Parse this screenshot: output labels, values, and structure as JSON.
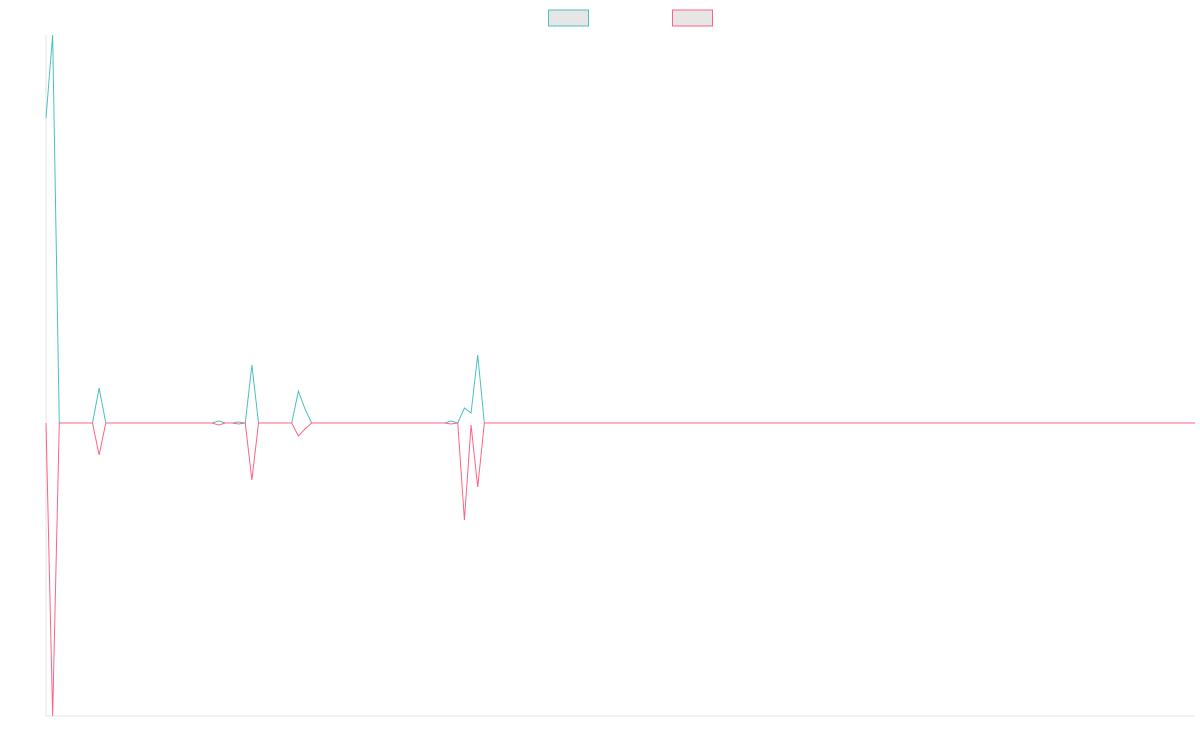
{
  "chart_data": {
    "type": "line",
    "ylim": [
      -293,
      388
    ],
    "legend": "top",
    "grid": false,
    "series": [
      {
        "color": "#4bc0c0",
        "values": [
          305,
          388,
          0,
          0,
          0,
          0,
          0,
          0,
          35,
          0,
          0,
          0,
          0,
          0,
          0,
          0,
          0,
          0,
          0,
          0,
          0,
          0,
          0,
          0,
          0,
          0,
          2,
          0,
          0,
          1,
          0,
          58,
          0,
          0,
          0,
          0,
          0,
          0,
          32,
          14,
          0,
          0,
          0,
          0,
          0,
          0,
          0,
          0,
          0,
          0,
          0,
          0,
          0,
          0,
          0,
          0,
          0,
          0,
          0,
          0,
          0,
          2,
          0,
          15,
          10,
          68,
          0,
          0,
          0,
          0,
          0,
          0,
          0,
          0,
          0,
          0,
          0,
          0,
          0,
          0,
          0,
          0,
          0,
          0,
          0,
          0,
          0,
          0,
          0,
          0,
          0,
          0,
          0,
          0,
          0,
          0,
          0,
          0,
          0,
          0,
          0,
          0,
          0,
          0,
          0,
          0,
          0,
          0,
          0,
          0,
          0,
          0,
          0,
          0,
          0,
          0,
          0,
          0,
          0,
          0,
          0,
          0,
          0,
          0,
          0,
          0,
          0,
          0,
          0,
          0,
          0,
          0,
          0,
          0,
          0,
          0,
          0,
          0,
          0,
          0,
          0,
          0,
          0,
          0,
          0,
          0,
          0,
          0,
          0,
          0,
          0,
          0,
          0,
          0,
          0,
          0,
          0,
          0,
          0,
          0,
          0,
          0,
          0,
          0,
          0,
          0,
          0,
          0,
          0,
          0,
          0,
          0,
          0,
          0
        ]
      },
      {
        "color": "#ff6384",
        "values": [
          0,
          -293,
          0,
          0,
          0,
          0,
          0,
          0,
          -32,
          0,
          0,
          0,
          0,
          0,
          0,
          0,
          0,
          0,
          0,
          0,
          0,
          0,
          0,
          0,
          0,
          0,
          -2,
          0,
          0,
          -1,
          0,
          -57,
          0,
          0,
          0,
          0,
          0,
          0,
          -13,
          -6,
          0,
          0,
          0,
          0,
          0,
          0,
          0,
          0,
          0,
          0,
          0,
          0,
          0,
          0,
          0,
          0,
          0,
          0,
          0,
          0,
          0,
          -1,
          0,
          -97,
          -2,
          -64,
          0,
          0,
          0,
          0,
          0,
          0,
          0,
          0,
          0,
          0,
          0,
          0,
          0,
          0,
          0,
          0,
          0,
          0,
          0,
          0,
          0,
          0,
          0,
          0,
          0,
          0,
          0,
          0,
          0,
          0,
          0,
          0,
          0,
          0,
          0,
          0,
          0,
          0,
          0,
          0,
          0,
          0,
          0,
          0,
          0,
          0,
          0,
          0,
          0,
          0,
          0,
          0,
          0,
          0,
          0,
          0,
          0,
          0,
          0,
          0,
          0,
          0,
          0,
          0,
          0,
          0,
          0,
          0,
          0,
          0,
          0,
          0,
          0,
          0,
          0,
          0,
          0,
          0,
          0,
          0,
          0,
          0,
          0,
          0,
          0,
          0,
          0,
          0,
          0,
          0,
          0,
          0,
          0,
          0,
          0,
          0,
          0,
          0,
          0,
          0,
          0,
          0,
          0,
          0,
          0,
          0,
          0,
          0
        ]
      }
    ]
  }
}
